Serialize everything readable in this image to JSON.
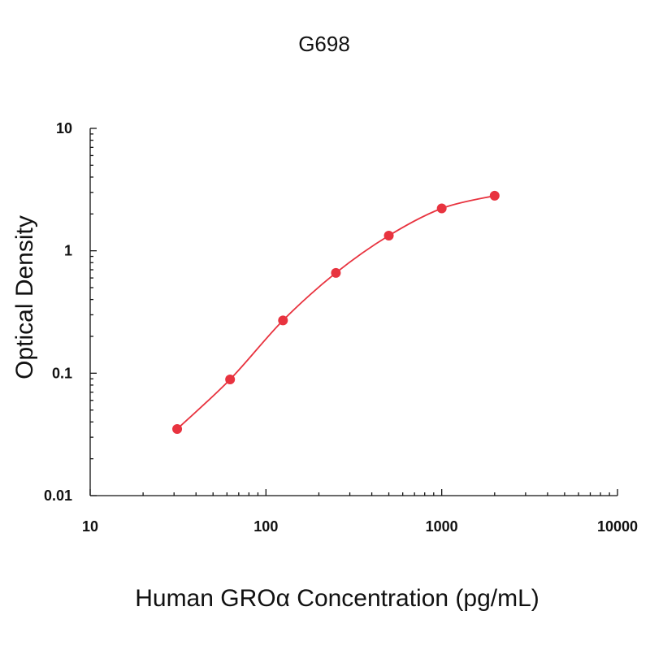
{
  "chart_data": {
    "type": "line",
    "title": "G698",
    "xlabel": "Human GROα Concentration (pg/mL)",
    "ylabel": "Optical Density",
    "x_scale": "log",
    "y_scale": "log",
    "xlim": [
      10,
      10000
    ],
    "ylim": [
      0.01,
      10
    ],
    "x_ticks": [
      10,
      100,
      1000,
      10000
    ],
    "x_tick_labels": [
      "10",
      "100",
      "1000",
      "10000"
    ],
    "y_ticks": [
      0.01,
      0.1,
      1,
      10
    ],
    "y_tick_labels": [
      "0.01",
      "0.1",
      "1",
      "10"
    ],
    "grid": false,
    "legend": "none",
    "series": [
      {
        "x": [
          31.25,
          62.5,
          125,
          250,
          500,
          1000,
          2000
        ],
        "y": [
          0.035,
          0.089,
          0.27,
          0.66,
          1.33,
          2.22,
          2.82
        ],
        "color": "#e8333f",
        "markers": "circle",
        "fit": "smooth-curve"
      }
    ]
  }
}
